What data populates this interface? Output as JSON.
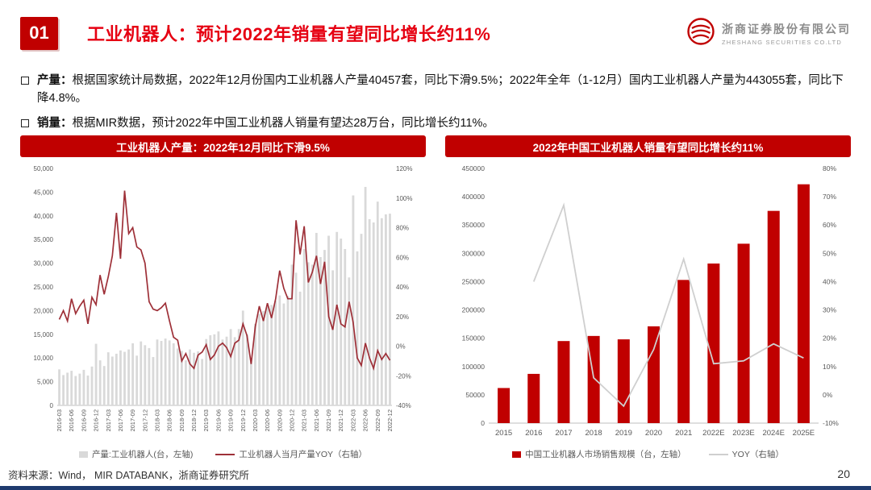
{
  "theme": {
    "accent_red": "#c00000",
    "title_red": "#e60012",
    "maroon_line": "#9e3038",
    "bar_gray": "#d9d9d9",
    "yoy_gray": "#cfcfcf",
    "bottom_navy": "#1e3a6e"
  },
  "header": {
    "number": "01",
    "title": "工业机器人：预计2022年销量有望同比增长约11%",
    "logo": {
      "company_cn": "浙商证券股份有限公司",
      "company_en": "ZHESHANG SECURITIES CO.LTD"
    }
  },
  "bullets": [
    {
      "label": "产量：",
      "text": "根据国家统计局数据，2022年12月份国内工业机器人产量40457套，同比下滑9.5%；2022年全年（1-12月）国内工业机器人产量为443055套，同比下降4.8%。"
    },
    {
      "label": "销量：",
      "text": "根据MIR数据，预计2022年中国工业机器人销量有望达28万台，同比增长约11%。"
    }
  ],
  "chart_data": [
    {
      "id": "production-monthly",
      "type": "bar",
      "title": "工业机器人产量：2022年12月同比下滑9.5%",
      "x": [
        "2016-03",
        "2016-04",
        "2016-05",
        "2016-06",
        "2016-07",
        "2016-08",
        "2016-09",
        "2016-10",
        "2016-11",
        "2016-12",
        "2017-01",
        "2017-02",
        "2017-03",
        "2017-04",
        "2017-05",
        "2017-06",
        "2017-07",
        "2017-08",
        "2017-09",
        "2017-10",
        "2017-11",
        "2017-12",
        "2018-01",
        "2018-02",
        "2018-03",
        "2018-04",
        "2018-05",
        "2018-06",
        "2018-07",
        "2018-08",
        "2018-09",
        "2018-10",
        "2018-11",
        "2018-12",
        "2019-01",
        "2019-02",
        "2019-03",
        "2019-04",
        "2019-05",
        "2019-06",
        "2019-07",
        "2019-08",
        "2019-09",
        "2019-10",
        "2019-11",
        "2019-12",
        "2020-01",
        "2020-02",
        "2020-03",
        "2020-04",
        "2020-05",
        "2020-06",
        "2020-07",
        "2020-08",
        "2020-09",
        "2020-10",
        "2020-11",
        "2020-12",
        "2021-01",
        "2021-02",
        "2021-03",
        "2021-04",
        "2021-05",
        "2021-06",
        "2021-07",
        "2021-08",
        "2021-09",
        "2021-10",
        "2021-11",
        "2021-12",
        "2022-01",
        "2022-02",
        "2022-03",
        "2022-04",
        "2022-05",
        "2022-06",
        "2022-07",
        "2022-08",
        "2022-09",
        "2022-10",
        "2022-11",
        "2022-12"
      ],
      "series": [
        {
          "name": "产量:工业机器人(台，左轴)",
          "type": "bar",
          "axis": "left",
          "color": "#d9d9d9",
          "values": [
            7600,
            6400,
            6900,
            7300,
            6200,
            6700,
            7500,
            6300,
            8200,
            13000,
            9500,
            8300,
            11200,
            10300,
            10900,
            11600,
            11300,
            11800,
            13100,
            10500,
            13500,
            12700,
            12100,
            10200,
            13900,
            13600,
            14100,
            13700,
            13100,
            12000,
            11500,
            9500,
            11800,
            11100,
            11400,
            9800,
            14000,
            14800,
            15000,
            15600,
            13900,
            14500,
            16100,
            14400,
            16100,
            20000,
            15000,
            10000,
            17200,
            19300,
            19900,
            20800,
            21200,
            22100,
            23200,
            21500,
            23100,
            29700,
            28000,
            24000,
            33000,
            30200,
            29700,
            36400,
            31300,
            32800,
            35800,
            28500,
            36600,
            35200,
            33000,
            27000,
            44300,
            32500,
            36200,
            46100,
            39300,
            38600,
            43000,
            39500,
            40300,
            40457
          ]
        },
        {
          "name": "工业机器人当月产量YOY（右轴）",
          "type": "line",
          "axis": "right",
          "color": "#9e3038",
          "values": [
            18,
            24,
            17,
            32,
            22,
            27,
            31,
            15,
            33,
            28,
            48,
            35,
            47,
            61,
            90,
            59,
            105,
            76,
            80,
            67,
            65,
            56,
            30,
            25,
            24,
            26,
            29,
            17,
            6,
            4,
            -10,
            -5,
            -12,
            -15,
            -6,
            -4,
            1,
            -9,
            -6,
            0,
            2,
            -1,
            -7,
            2,
            4,
            15,
            7,
            -12,
            13,
            27,
            17,
            29,
            19,
            32,
            51,
            39,
            32,
            32,
            85,
            62,
            81,
            43,
            50,
            61,
            42,
            57,
            20,
            11,
            28,
            15,
            13,
            30,
            16,
            -8,
            -13,
            2,
            -8,
            -15,
            -3,
            -9,
            -5,
            -9.5
          ]
        }
      ],
      "left_axis": {
        "min": 0,
        "max": 50000,
        "step": 5000,
        "format": "comma"
      },
      "right_axis": {
        "min": -40,
        "max": 120,
        "step": 20,
        "format": "percent"
      },
      "x_tick_every": 3,
      "grid": false,
      "legend_position": "bottom"
    },
    {
      "id": "sales-annual",
      "type": "bar",
      "title": "2022年中国工业机器人销量有望同比增长约11%",
      "categories": [
        "2015",
        "2016",
        "2017",
        "2018",
        "2019",
        "2020",
        "2021",
        "2022E",
        "2023E",
        "2024E",
        "2025E"
      ],
      "series": [
        {
          "name": "中国工业机器人市场销售规模（台，左轴）",
          "type": "bar",
          "axis": "left",
          "color": "#c00000",
          "values": [
            62000,
            87000,
            145000,
            154000,
            148000,
            171000,
            253000,
            282000,
            317000,
            375000,
            422000
          ]
        },
        {
          "name": "YOY（右轴）",
          "type": "line",
          "axis": "right",
          "color": "#cfcfcf",
          "values": [
            null,
            40,
            67,
            6,
            -4,
            16,
            48,
            11,
            12,
            18,
            13
          ]
        }
      ],
      "left_axis": {
        "min": 0,
        "max": 450000,
        "step": 50000,
        "format": "plain"
      },
      "right_axis": {
        "min": -10,
        "max": 80,
        "step": 10,
        "format": "percent"
      },
      "x_tick_every": 1,
      "grid": false,
      "legend_position": "bottom"
    }
  ],
  "footer": {
    "source": "资料来源：Wind， MIR DATABANK，浙商证券研究所",
    "page": "20"
  }
}
